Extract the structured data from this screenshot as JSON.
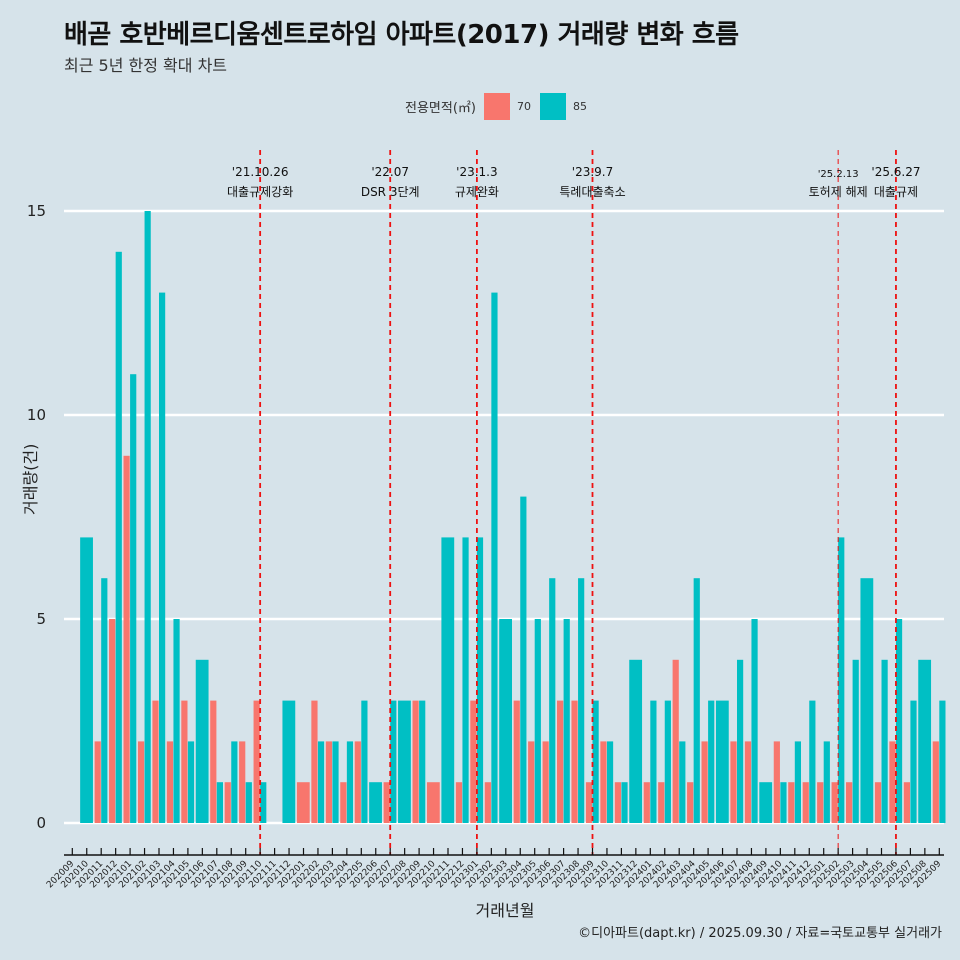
{
  "chart_data": {
    "type": "bar",
    "title": "배곧 호반베르디움센트로하임 아파트(2017) 거래량 변화 흐름",
    "subtitle": "최근 5년 한정 확대 차트",
    "xlabel": "거래년월",
    "ylabel": "거래량(건)",
    "ylim": [
      0,
      16
    ],
    "yticks": [
      0,
      5,
      10,
      15
    ],
    "grid": true,
    "legend": {
      "title": "전용면적(㎡)",
      "position": "top"
    },
    "categories": [
      "202009",
      "202010",
      "202011",
      "202012",
      "202101",
      "202102",
      "202103",
      "202104",
      "202105",
      "202106",
      "202107",
      "202108",
      "202109",
      "202110",
      "202111",
      "202112",
      "202201",
      "202202",
      "202203",
      "202204",
      "202205",
      "202206",
      "202207",
      "202208",
      "202209",
      "202210",
      "202211",
      "202212",
      "202301",
      "202302",
      "202303",
      "202304",
      "202305",
      "202306",
      "202307",
      "202308",
      "202309",
      "202310",
      "202311",
      "202312",
      "202401",
      "202402",
      "202403",
      "202404",
      "202405",
      "202406",
      "202407",
      "202408",
      "202409",
      "202410",
      "202411",
      "202412",
      "202501",
      "202502",
      "202503",
      "202504",
      "202505",
      "202506",
      "202507",
      "202508",
      "202509"
    ],
    "series": [
      {
        "name": "70",
        "color": "#f8766d",
        "values": [
          null,
          null,
          2,
          5,
          9,
          2,
          3,
          2,
          3,
          null,
          3,
          1,
          2,
          3,
          null,
          null,
          1,
          3,
          2,
          1,
          2,
          null,
          1,
          null,
          3,
          1,
          null,
          1,
          3,
          1,
          null,
          3,
          2,
          2,
          3,
          3,
          1,
          2,
          1,
          null,
          1,
          1,
          4,
          1,
          2,
          null,
          2,
          2,
          null,
          2,
          1,
          1,
          1,
          1,
          1,
          null,
          1,
          2,
          1,
          null,
          2
        ]
      },
      {
        "name": "85",
        "color": "#00bfc4",
        "values": [
          null,
          7,
          6,
          14,
          11,
          15,
          13,
          5,
          2,
          4,
          1,
          2,
          1,
          1,
          null,
          3,
          null,
          2,
          2,
          2,
          3,
          1,
          3,
          3,
          3,
          null,
          7,
          7,
          7,
          13,
          5,
          8,
          5,
          6,
          5,
          6,
          3,
          2,
          1,
          4,
          3,
          3,
          2,
          6,
          3,
          3,
          4,
          5,
          1,
          1,
          2,
          3,
          2,
          7,
          4,
          6,
          4,
          5,
          3,
          4,
          3
        ]
      }
    ],
    "annotations": [
      {
        "x": "202110",
        "date": "'21.10.26",
        "label": "대출규제강화",
        "style": "dashed"
      },
      {
        "x": "202207",
        "date": "'22.07",
        "label": "DSR 3단계",
        "style": "dashed"
      },
      {
        "x": "202301",
        "date": "'23.1.3",
        "label": "규제완화",
        "style": "dashed"
      },
      {
        "x": "202309",
        "date": "'23.9.7",
        "label": "특례대출축소",
        "style": "dashed"
      },
      {
        "x": "202502",
        "date": "'25.2.13",
        "label": "토허제 해제",
        "style": "dashed-thin"
      },
      {
        "x": "202506",
        "date": "'25.6.27",
        "label": "대출규제",
        "style": "dashed"
      }
    ]
  },
  "header": {
    "title": "배곧 호반베르디움센트로하임 아파트(2017) 거래량 변화 흐름",
    "subtitle": "최근 5년 한정 확대 차트"
  },
  "legend": {
    "title": "전용면적(㎡)",
    "items": [
      {
        "label": "70",
        "color": "#f8766d"
      },
      {
        "label": "85",
        "color": "#00bfc4"
      }
    ]
  },
  "footer": {
    "credit": "©디아파트(dapt.kr) / 2025.09.30 / 자료=국토교통부 실거래가"
  },
  "colors": {
    "background": "#d6e3ea",
    "gridline": "#ffffff",
    "vline": "#ee1111"
  }
}
